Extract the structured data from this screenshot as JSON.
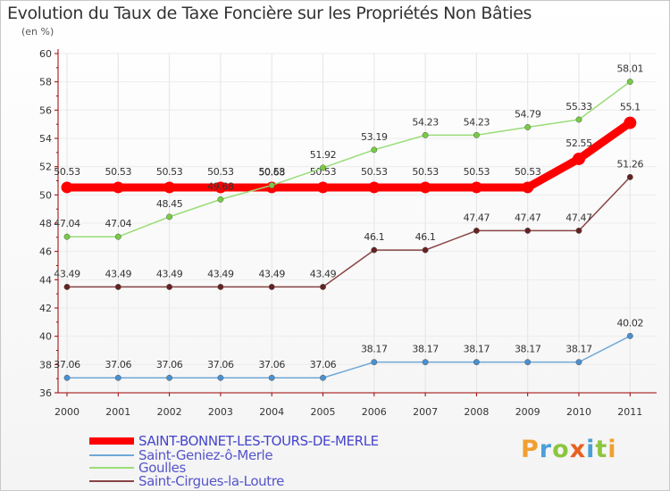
{
  "chart_data": {
    "type": "line",
    "title": "Evolution du Taux de Taxe Foncière sur les Propriétés Non Bâties",
    "ylabel": "(en %)",
    "xlabel": "",
    "x": [
      "2000",
      "2001",
      "2002",
      "2003",
      "2004",
      "2005",
      "2006",
      "2007",
      "2008",
      "2009",
      "2010",
      "2011"
    ],
    "ylim": [
      36,
      60
    ],
    "yticks": [
      36,
      38,
      40,
      42,
      44,
      46,
      48,
      50,
      52,
      54,
      56,
      58,
      60
    ],
    "series": [
      {
        "name": "SAINT-BONNET-LES-TOURS-DE-MERLE",
        "color": "#ff0000",
        "bold": true,
        "values": [
          50.53,
          50.53,
          50.53,
          50.53,
          50.53,
          50.53,
          50.53,
          50.53,
          50.53,
          50.53,
          52.55,
          55.1
        ],
        "labels": [
          "50.53",
          "50.53",
          "50.53",
          "50.53",
          "50.53",
          "50.53",
          "50.53",
          "50.53",
          "50.53",
          "50.53",
          "52.55",
          "55.1"
        ]
      },
      {
        "name": "Saint-Geniez-ô-Merle",
        "color": "#6fa8d8",
        "marker": "#4a90d0",
        "values": [
          37.06,
          37.06,
          37.06,
          37.06,
          37.06,
          37.06,
          38.17,
          38.17,
          38.17,
          38.17,
          38.17,
          40.02
        ],
        "labels": [
          "37.06",
          "37.06",
          "37.06",
          "37.06",
          "37.06",
          "37.06",
          "38.17",
          "38.17",
          "38.17",
          "38.17",
          "38.17",
          "40.02"
        ]
      },
      {
        "name": "Goulles",
        "color": "#99dd77",
        "marker": "#77cc44",
        "values": [
          47.04,
          47.04,
          48.45,
          49.68,
          50.68,
          51.92,
          53.19,
          54.23,
          54.23,
          54.79,
          55.33,
          58.01
        ],
        "labels": [
          "47.04",
          "47.04",
          "48.45",
          "49.68",
          "50.68",
          "51.92",
          "53.19",
          "54.23",
          "54.23",
          "54.79",
          "55.33",
          "58.01"
        ]
      },
      {
        "name": "Saint-Cirgues-la-Loutre",
        "color": "#884444",
        "marker": "#662222",
        "values": [
          43.49,
          43.49,
          43.49,
          43.49,
          43.49,
          43.49,
          46.1,
          46.1,
          47.47,
          47.47,
          47.47,
          51.26
        ],
        "labels": [
          "43.49",
          "43.49",
          "43.49",
          "43.49",
          "43.49",
          "43.49",
          "46.1",
          "46.1",
          "47.47",
          "47.47",
          "47.47",
          "51.26"
        ]
      }
    ],
    "legend": "bottom-left"
  },
  "logo": {
    "letters": [
      "P",
      "r",
      "o",
      "x",
      "i",
      "t",
      "i"
    ],
    "colors": [
      "#f0a030",
      "#4aa0d8",
      "#8cc63f",
      "#e86020",
      "#4aa0d8",
      "#8cc63f",
      "#f0a030"
    ]
  }
}
